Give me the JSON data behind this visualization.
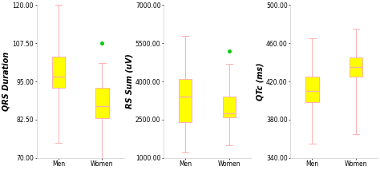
{
  "panels": [
    {
      "ylabel": "QRS Duration",
      "ylim": [
        70,
        120
      ],
      "yticks": [
        70.0,
        82.5,
        95.0,
        107.5,
        120.0
      ],
      "categories": [
        "Men",
        "Women"
      ],
      "boxes": [
        {
          "q1": 93,
          "median": 96.5,
          "q3": 103,
          "whislo": 75,
          "whishi": 120,
          "fliers": []
        },
        {
          "q1": 83,
          "median": 87,
          "q3": 93,
          "whislo": 70,
          "whishi": 101,
          "fliers": [
            107.5
          ]
        }
      ]
    },
    {
      "ylabel": "RS Sum (uV)",
      "ylim": [
        1000,
        7000
      ],
      "yticks": [
        1000.0,
        2500.0,
        4000.0,
        5500.0,
        7000.0
      ],
      "categories": [
        "Men",
        "Women"
      ],
      "boxes": [
        {
          "q1": 2400,
          "median": 3400,
          "q3": 4100,
          "whislo": 1200,
          "whishi": 5800,
          "fliers": []
        },
        {
          "q1": 2600,
          "median": 2750,
          "q3": 3400,
          "whislo": 1500,
          "whishi": 4700,
          "fliers": [
            5200
          ]
        }
      ]
    },
    {
      "ylabel": "QTc (ms)",
      "ylim": [
        340,
        500
      ],
      "yticks": [
        340.0,
        380.0,
        420.0,
        460.0,
        500.0
      ],
      "categories": [
        "Men",
        "Women"
      ],
      "boxes": [
        {
          "q1": 398,
          "median": 410,
          "q3": 425,
          "whislo": 355,
          "whishi": 465,
          "fliers": []
        },
        {
          "q1": 425,
          "median": 435,
          "q3": 445,
          "whislo": 365,
          "whishi": 475,
          "fliers": []
        }
      ]
    }
  ],
  "box_color": "#FFFF00",
  "box_edgecolor": "#FFB0B0",
  "median_color": "#FFB0B0",
  "whisker_color": "#FFB0B0",
  "cap_color": "#FFB0B0",
  "flier_color": "#00CC00",
  "background_color": "#ffffff",
  "box_width": 0.3,
  "ylabel_rotation": 90,
  "tick_fontsize": 5.5,
  "label_fontsize": 7,
  "cat_fontsize": 5.5
}
